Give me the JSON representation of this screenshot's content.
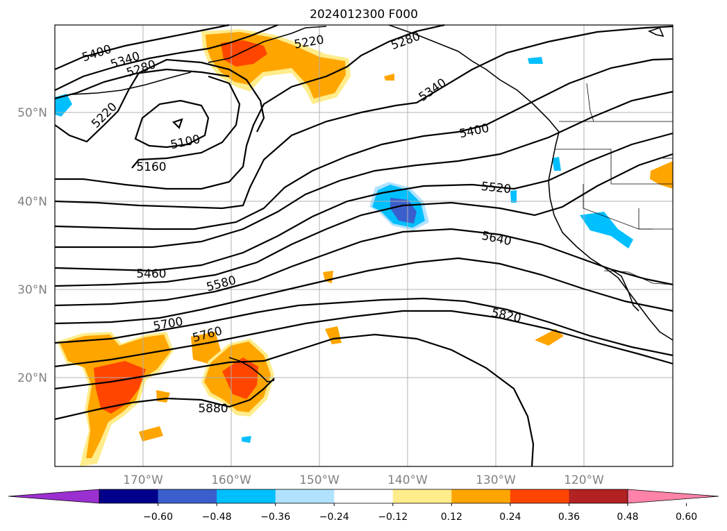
{
  "title": "2024012300 F000",
  "lat_labels": [
    "50°N",
    "40°N",
    "30°N",
    "20°N"
  ],
  "lon_labels": [
    "170°W",
    "160°W",
    "150°W",
    "140°W",
    "130°W",
    "120°W"
  ],
  "contour_labels": [
    "5400",
    "5340",
    "5280",
    "5220",
    "5100",
    "5160",
    "5220",
    "5280",
    "5340",
    "5400",
    "5520",
    "5640",
    "5460",
    "5580",
    "5700",
    "5760",
    "5820",
    "5880"
  ],
  "colorbar": {
    "ticks": [
      "−0.60",
      "−0.48",
      "−0.36",
      "−0.24",
      "−0.12",
      "0.12",
      "0.24",
      "0.36",
      "0.48",
      "0.60"
    ],
    "colors": [
      "#9b30d0",
      "#00008b",
      "#3a5fcd",
      "#00bfff",
      "#b0e2ff",
      "#ffffff",
      "#ffec8b",
      "#ffa500",
      "#ff4500",
      "#b22222",
      "#ff83a8"
    ]
  }
}
